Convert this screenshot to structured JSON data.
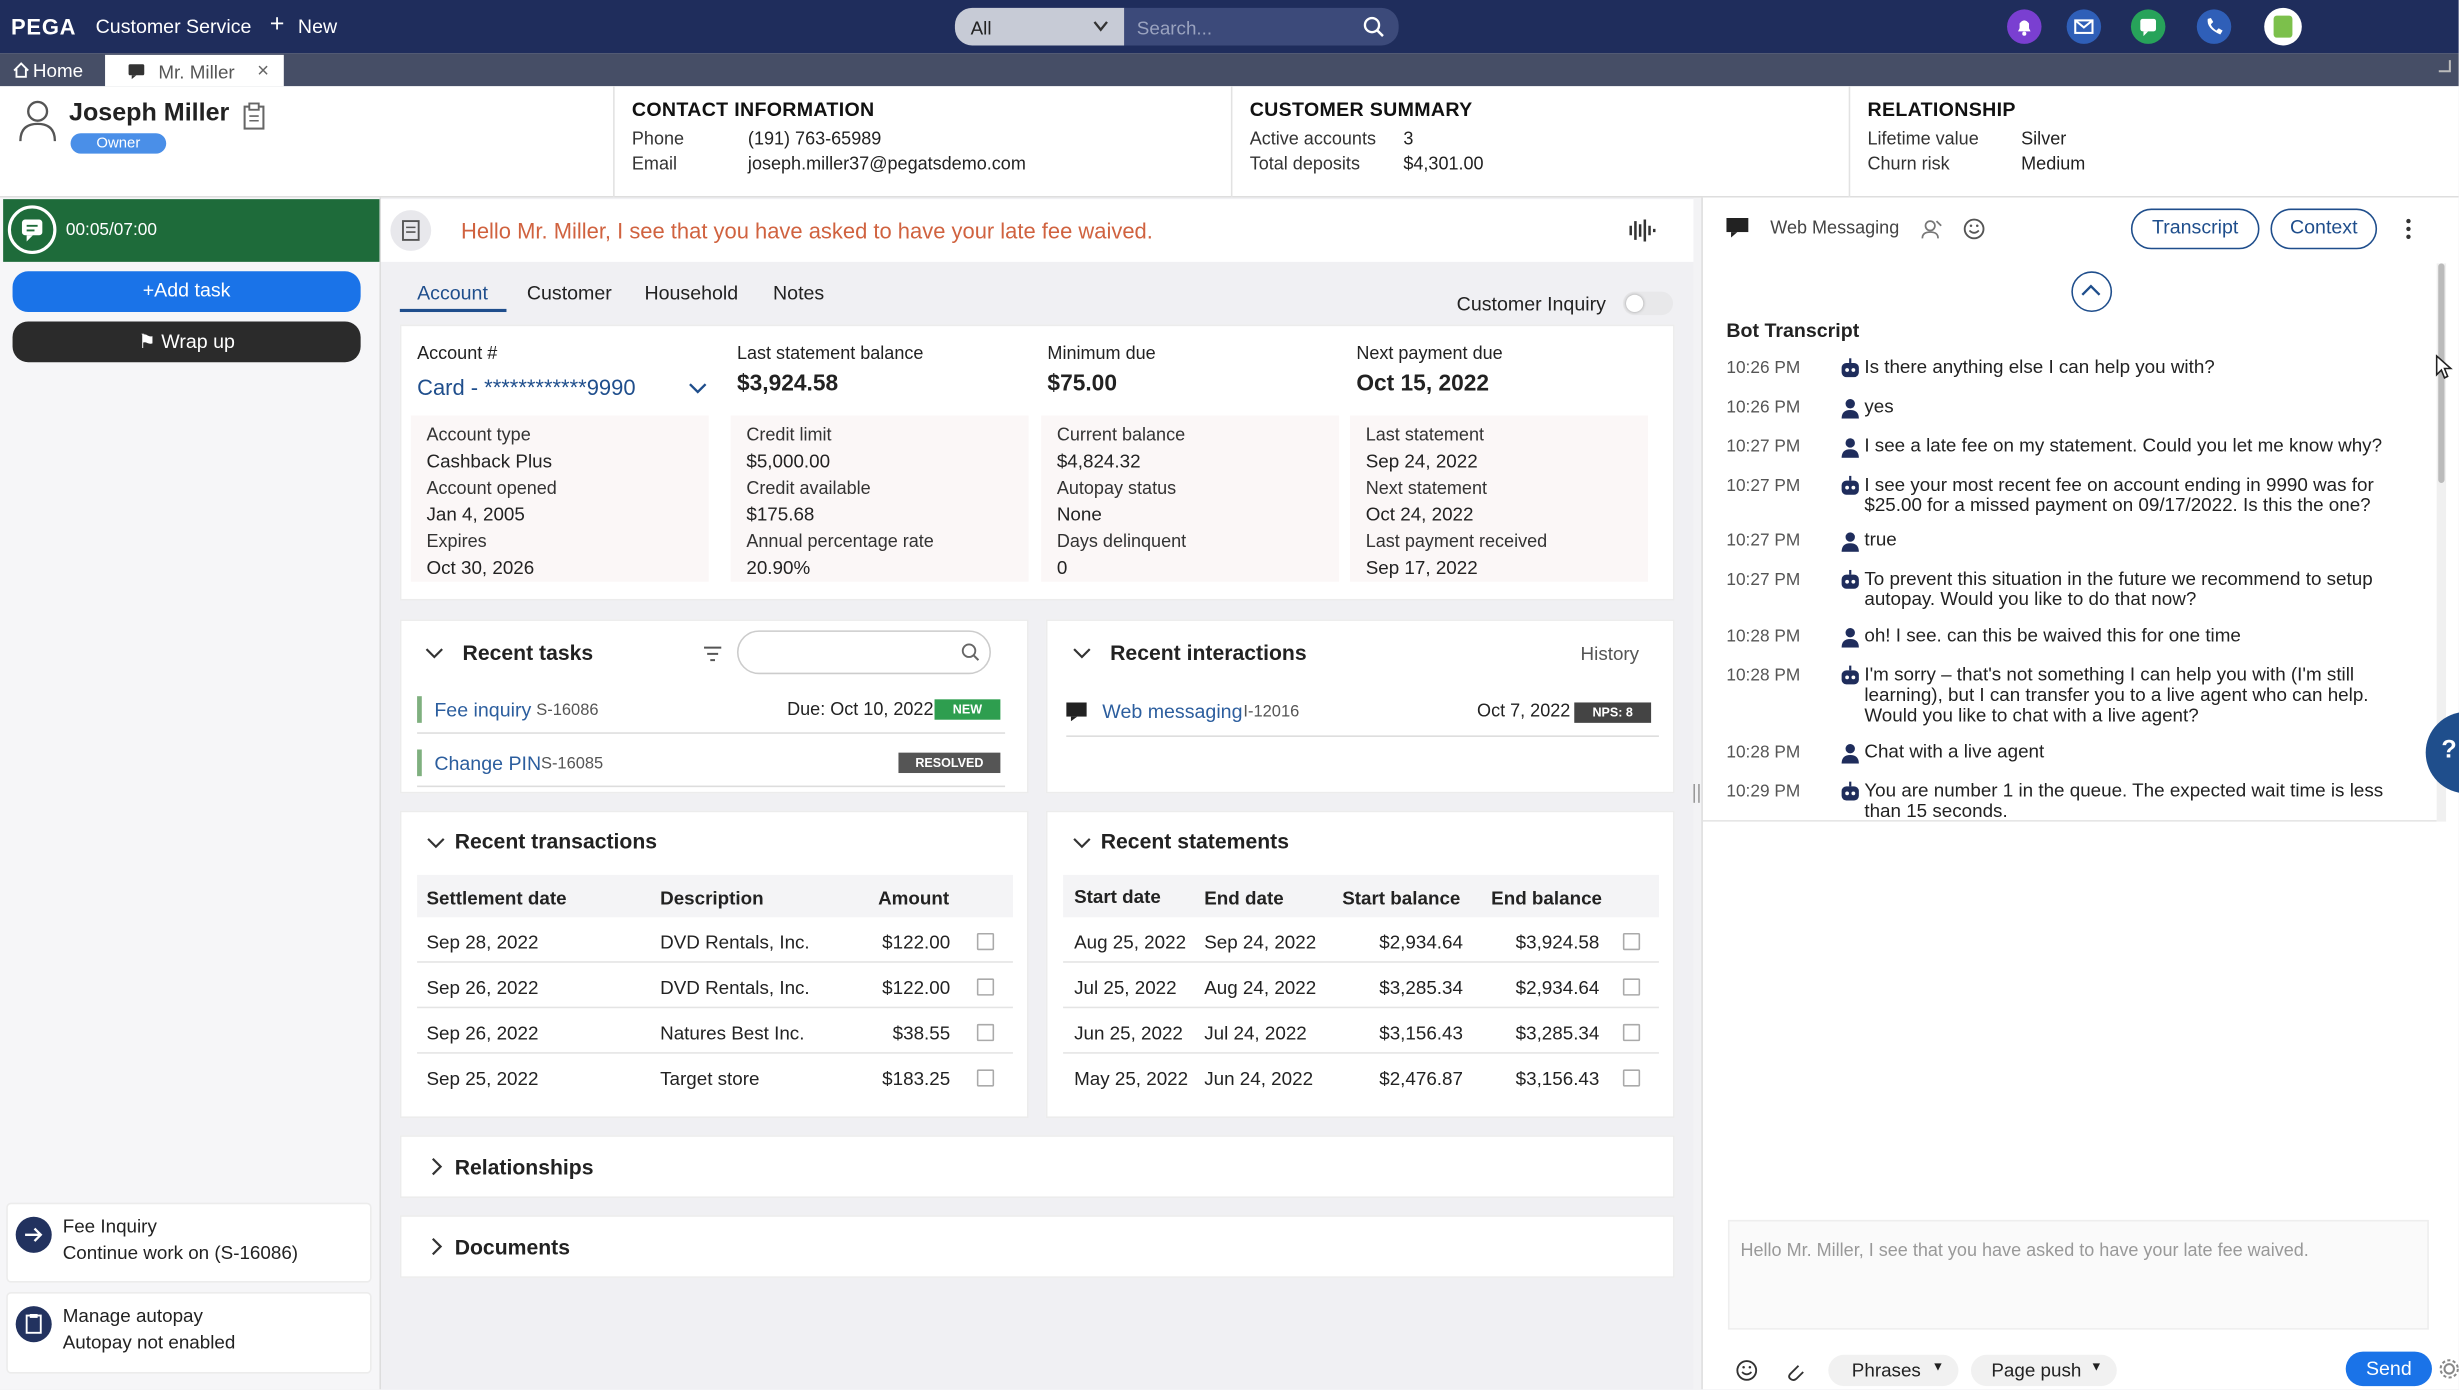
{
  "topbar": {
    "logo": "PEGA",
    "app_name": "Customer Service",
    "new_label": "New",
    "search_scope": "All",
    "search_placeholder": "Search..."
  },
  "tabs": {
    "home": "Home",
    "active": "Mr. Miller"
  },
  "customer": {
    "name": "Joseph Miller",
    "role_badge": "Owner"
  },
  "contact": {
    "title": "CONTACT INFORMATION",
    "phone_label": "Phone",
    "phone": "(191) 763-65989",
    "email_label": "Email",
    "email": "joseph.miller37@pegatsdemo.com"
  },
  "summary": {
    "title": "CUSTOMER SUMMARY",
    "active_accounts_label": "Active accounts",
    "active_accounts": "3",
    "total_deposits_label": "Total deposits",
    "total_deposits": "$4,301.00"
  },
  "relationship": {
    "title": "RELATIONSHIP",
    "lifetime_label": "Lifetime value",
    "lifetime": "Silver",
    "churn_label": "Churn risk",
    "churn": "Medium"
  },
  "left": {
    "timer": "00:05/07:00",
    "add_task": "Add task",
    "wrap_up": "Wrap up",
    "suggestions": [
      {
        "title": "Fee Inquiry",
        "sub": "Continue work on (S-16086)"
      },
      {
        "title": "Manage autopay",
        "sub": "Autopay not enabled"
      }
    ]
  },
  "banner": {
    "text": "Hello Mr. Miller, I see that you have asked to have your late fee waived."
  },
  "subtabs": [
    "Account",
    "Customer",
    "Household",
    "Notes"
  ],
  "customer_inquiry_label": "Customer Inquiry",
  "account": {
    "number_label": "Account #",
    "number": "Card - ************9990",
    "last_balance_label": "Last statement balance",
    "last_balance": "$3,924.58",
    "min_due_label": "Minimum due",
    "min_due": "$75.00",
    "next_due_label": "Next payment due",
    "next_due": "Oct 15, 2022",
    "details": [
      [
        {
          "label": "Account type",
          "value": "Cashback Plus"
        },
        {
          "label": "Account opened",
          "value": "Jan 4, 2005"
        },
        {
          "label": "Expires",
          "value": "Oct 30, 2026"
        }
      ],
      [
        {
          "label": "Credit limit",
          "value": "$5,000.00"
        },
        {
          "label": "Credit available",
          "value": "$175.68"
        },
        {
          "label": "Annual percentage rate",
          "value": "20.90%"
        }
      ],
      [
        {
          "label": "Current balance",
          "value": "$4,824.32"
        },
        {
          "label": "Autopay status",
          "value": "None"
        },
        {
          "label": "Days delinquent",
          "value": "0"
        }
      ],
      [
        {
          "label": "Last statement",
          "value": "Sep 24, 2022"
        },
        {
          "label": "Next statement",
          "value": "Oct 24, 2022"
        },
        {
          "label": "Last payment received",
          "value": "Sep 17, 2022"
        }
      ]
    ]
  },
  "recent_tasks": {
    "title": "Recent tasks",
    "items": [
      {
        "name": "Fee inquiry",
        "id": "S-16086",
        "due": "Due: Oct 10, 2022",
        "status": "NEW"
      },
      {
        "name": "Change PIN",
        "id": "S-16085",
        "due": "",
        "status": "RESOLVED"
      }
    ]
  },
  "recent_interactions": {
    "title": "Recent interactions",
    "history": "History",
    "items": [
      {
        "channel": "Web messaging",
        "id": "I-12016",
        "date": "Oct 7, 2022",
        "badge": "NPS: 8"
      }
    ]
  },
  "recent_transactions": {
    "title": "Recent transactions",
    "headers": [
      "Settlement date",
      "Description",
      "Amount"
    ],
    "rows": [
      [
        "Sep 28, 2022",
        "DVD Rentals, Inc.",
        "$122.00"
      ],
      [
        "Sep 26, 2022",
        "DVD Rentals, Inc.",
        "$122.00"
      ],
      [
        "Sep 26, 2022",
        "Natures Best Inc.",
        "$38.55"
      ],
      [
        "Sep 25, 2022",
        "Target store",
        "$183.25"
      ]
    ]
  },
  "recent_statements": {
    "title": "Recent statements",
    "headers": [
      "Start date",
      "End date",
      "Start balance",
      "End balance"
    ],
    "rows": [
      [
        "Aug 25, 2022",
        "Sep 24, 2022",
        "$2,934.64",
        "$3,924.58"
      ],
      [
        "Jul 25, 2022",
        "Aug 24, 2022",
        "$3,285.34",
        "$2,934.64"
      ],
      [
        "Jun 25, 2022",
        "Jul 24, 2022",
        "$3,156.43",
        "$3,285.34"
      ],
      [
        "May 25, 2022",
        "Jun 24, 2022",
        "$2,476.87",
        "$3,156.43"
      ]
    ]
  },
  "collapsed_sections": [
    "Relationships",
    "Documents"
  ],
  "chat": {
    "channel": "Web Messaging",
    "transcript_btn": "Transcript",
    "context_btn": "Context",
    "section_title": "Bot Transcript",
    "messages": [
      {
        "time": "10:26 PM",
        "who": "bot",
        "text": "Is there anything else I can help you with?"
      },
      {
        "time": "10:26 PM",
        "who": "user",
        "text": "yes"
      },
      {
        "time": "10:27 PM",
        "who": "user",
        "text": "I see a late fee on my statement. Could you let me know why?"
      },
      {
        "time": "10:27 PM",
        "who": "bot",
        "text": "I see your most recent fee on account ending in 9990 was for $25.00 for a missed payment on 09/17/2022. Is this the one?"
      },
      {
        "time": "10:27 PM",
        "who": "user",
        "text": "true"
      },
      {
        "time": "10:27 PM",
        "who": "bot",
        "text": "To prevent this situation in the future we recommend to setup autopay. Would you like to do that now?"
      },
      {
        "time": "10:28 PM",
        "who": "user",
        "text": "oh! I see. can this be waived this for one time"
      },
      {
        "time": "10:28 PM",
        "who": "bot",
        "text": "I'm sorry – that's not something I can help you with (I'm still learning), but I can transfer you to a live agent who can help. Would you like to chat with a live agent?"
      },
      {
        "time": "10:28 PM",
        "who": "user",
        "text": "Chat with a live agent"
      },
      {
        "time": "10:29 PM",
        "who": "bot",
        "text": "You are number 1 in the queue. The expected wait time is less than 15 seconds."
      }
    ],
    "composer_text": "Hello Mr. Miller, I see that you have asked to have your late fee waived.",
    "phrases": "Phrases",
    "page_push": "Page push",
    "send": "Send"
  },
  "colors": {
    "topbar": "#1f2d5c",
    "accent_blue": "#1a73e8",
    "timer_green": "#1e6b3a",
    "banner_text": "#d0623f",
    "new_badge": "#2e9e4f",
    "resolved_badge": "#555555"
  }
}
